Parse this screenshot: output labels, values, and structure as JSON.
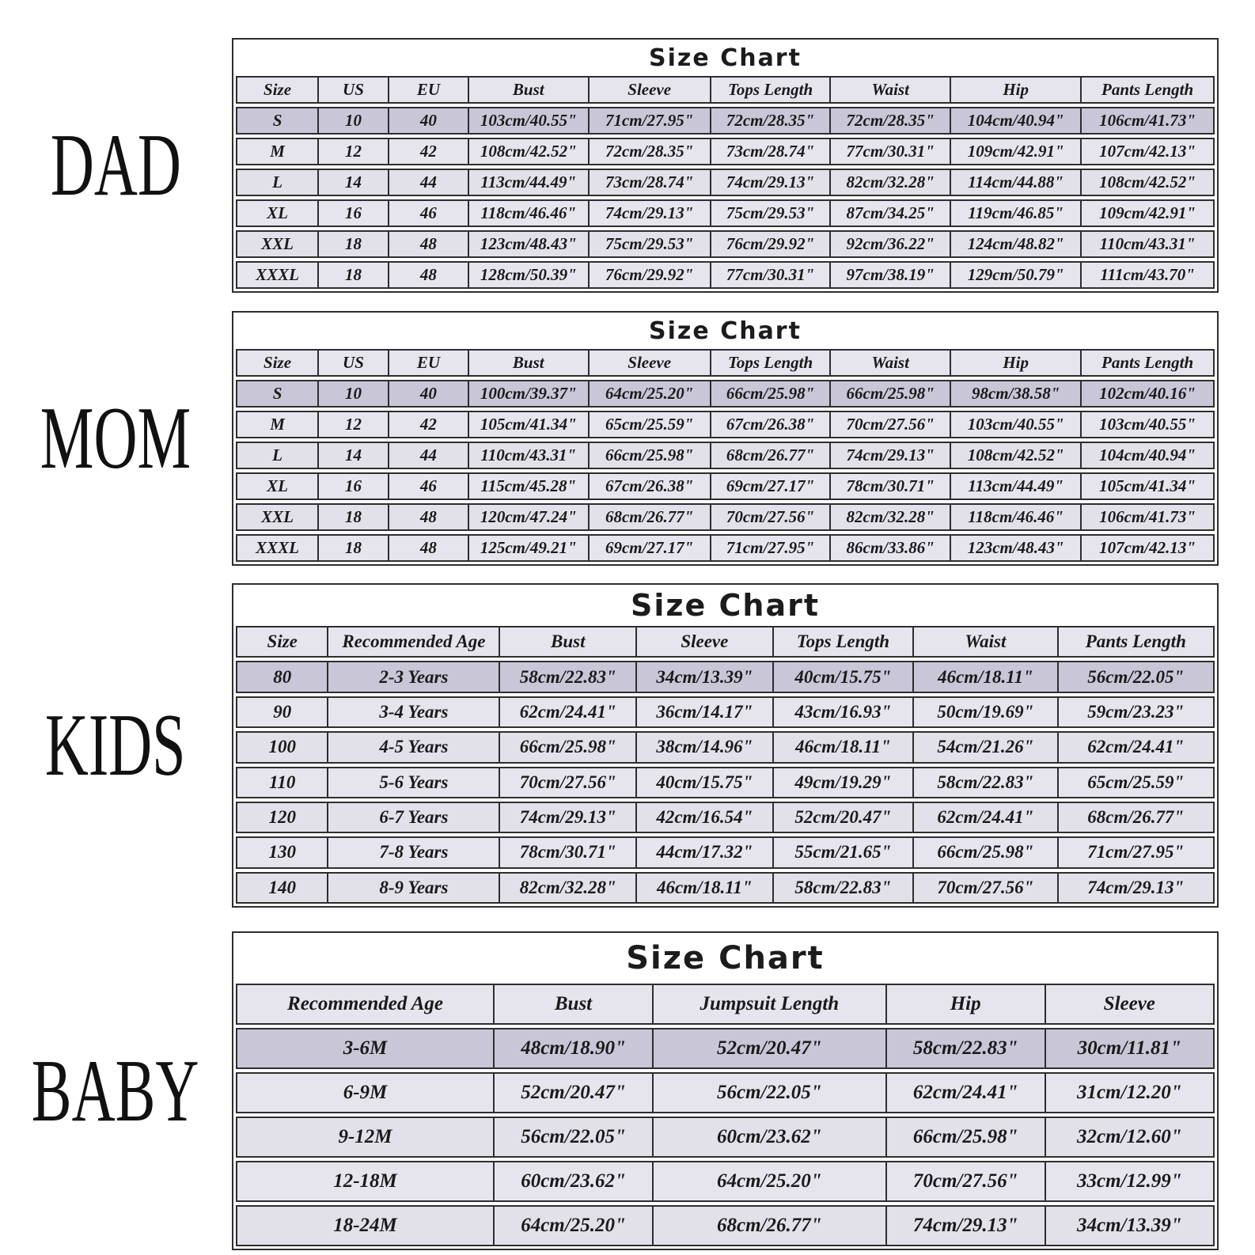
{
  "colors": {
    "page_bg": "#ffffff",
    "border": "#2e2e2e",
    "header_bg": "#c6c3d6",
    "first_row_bg": "#c9c6d8",
    "row_a": "#e6e5ee",
    "row_b": "#e2e1ea",
    "cell_text": "#1a1a1a",
    "title_color": "#1c1c1c",
    "label_color": "#111111"
  },
  "chart_data": [
    {
      "type": "table",
      "group": "DAD",
      "title": "Size Chart",
      "columns": [
        "Size",
        "US",
        "EU",
        "Bust",
        "Sleeve",
        "Tops Length",
        "Waist",
        "Hip",
        "Pants Length"
      ],
      "rows": [
        [
          "S",
          "10",
          "40",
          "103cm/40.55\"",
          "71cm/27.95\"",
          "72cm/28.35\"",
          "72cm/28.35\"",
          "104cm/40.94\"",
          "106cm/41.73\""
        ],
        [
          "M",
          "12",
          "42",
          "108cm/42.52\"",
          "72cm/28.35\"",
          "73cm/28.74\"",
          "77cm/30.31\"",
          "109cm/42.91\"",
          "107cm/42.13\""
        ],
        [
          "L",
          "14",
          "44",
          "113cm/44.49\"",
          "73cm/28.74\"",
          "74cm/29.13\"",
          "82cm/32.28\"",
          "114cm/44.88\"",
          "108cm/42.52\""
        ],
        [
          "XL",
          "16",
          "46",
          "118cm/46.46\"",
          "74cm/29.13\"",
          "75cm/29.53\"",
          "87cm/34.25\"",
          "119cm/46.85\"",
          "109cm/42.91\""
        ],
        [
          "XXL",
          "18",
          "48",
          "123cm/48.43\"",
          "75cm/29.53\"",
          "76cm/29.92\"",
          "92cm/36.22\"",
          "124cm/48.82\"",
          "110cm/43.31\""
        ],
        [
          "XXXL",
          "18",
          "48",
          "128cm/50.39\"",
          "76cm/29.92\"",
          "77cm/30.31\"",
          "97cm/38.19\"",
          "129cm/50.79\"",
          "111cm/43.70\""
        ]
      ]
    },
    {
      "type": "table",
      "group": "MOM",
      "title": "Size Chart",
      "columns": [
        "Size",
        "US",
        "EU",
        "Bust",
        "Sleeve",
        "Tops Length",
        "Waist",
        "Hip",
        "Pants Length"
      ],
      "rows": [
        [
          "S",
          "10",
          "40",
          "100cm/39.37\"",
          "64cm/25.20\"",
          "66cm/25.98\"",
          "66cm/25.98\"",
          "98cm/38.58\"",
          "102cm/40.16\""
        ],
        [
          "M",
          "12",
          "42",
          "105cm/41.34\"",
          "65cm/25.59\"",
          "67cm/26.38\"",
          "70cm/27.56\"",
          "103cm/40.55\"",
          "103cm/40.55\""
        ],
        [
          "L",
          "14",
          "44",
          "110cm/43.31\"",
          "66cm/25.98\"",
          "68cm/26.77\"",
          "74cm/29.13\"",
          "108cm/42.52\"",
          "104cm/40.94\""
        ],
        [
          "XL",
          "16",
          "46",
          "115cm/45.28\"",
          "67cm/26.38\"",
          "69cm/27.17\"",
          "78cm/30.71\"",
          "113cm/44.49\"",
          "105cm/41.34\""
        ],
        [
          "XXL",
          "18",
          "48",
          "120cm/47.24\"",
          "68cm/26.77\"",
          "70cm/27.56\"",
          "82cm/32.28\"",
          "118cm/46.46\"",
          "106cm/41.73\""
        ],
        [
          "XXXL",
          "18",
          "48",
          "125cm/49.21\"",
          "69cm/27.17\"",
          "71cm/27.95\"",
          "86cm/33.86\"",
          "123cm/48.43\"",
          "107cm/42.13\""
        ]
      ]
    },
    {
      "type": "table",
      "group": "KIDS",
      "title": "Size Chart",
      "columns": [
        "Size",
        "Recommended Age",
        "Bust",
        "Sleeve",
        "Tops Length",
        "Waist",
        "Pants Length"
      ],
      "rows": [
        [
          "80",
          "2-3 Years",
          "58cm/22.83\"",
          "34cm/13.39\"",
          "40cm/15.75\"",
          "46cm/18.11\"",
          "56cm/22.05\""
        ],
        [
          "90",
          "3-4 Years",
          "62cm/24.41\"",
          "36cm/14.17\"",
          "43cm/16.93\"",
          "50cm/19.69\"",
          "59cm/23.23\""
        ],
        [
          "100",
          "4-5 Years",
          "66cm/25.98\"",
          "38cm/14.96\"",
          "46cm/18.11\"",
          "54cm/21.26\"",
          "62cm/24.41\""
        ],
        [
          "110",
          "5-6 Years",
          "70cm/27.56\"",
          "40cm/15.75\"",
          "49cm/19.29\"",
          "58cm/22.83\"",
          "65cm/25.59\""
        ],
        [
          "120",
          "6-7 Years",
          "74cm/29.13\"",
          "42cm/16.54\"",
          "52cm/20.47\"",
          "62cm/24.41\"",
          "68cm/26.77\""
        ],
        [
          "130",
          "7-8 Years",
          "78cm/30.71\"",
          "44cm/17.32\"",
          "55cm/21.65\"",
          "66cm/25.98\"",
          "71cm/27.95\""
        ],
        [
          "140",
          "8-9 Years",
          "82cm/32.28\"",
          "46cm/18.11\"",
          "58cm/22.83\"",
          "70cm/27.56\"",
          "74cm/29.13\""
        ]
      ]
    },
    {
      "type": "table",
      "group": "BABY",
      "title": "Size Chart",
      "columns": [
        "Recommended Age",
        "Bust",
        "Jumpsuit Length",
        "Hip",
        "Sleeve"
      ],
      "rows": [
        [
          "3-6M",
          "48cm/18.90\"",
          "52cm/20.47\"",
          "58cm/22.83\"",
          "30cm/11.81\""
        ],
        [
          "6-9M",
          "52cm/20.47\"",
          "56cm/22.05\"",
          "62cm/24.41\"",
          "31cm/12.20\""
        ],
        [
          "9-12M",
          "56cm/22.05\"",
          "60cm/23.62\"",
          "66cm/25.98\"",
          "32cm/12.60\""
        ],
        [
          "12-18M",
          "60cm/23.62\"",
          "64cm/25.20\"",
          "70cm/27.56\"",
          "33cm/12.99\""
        ],
        [
          "18-24M",
          "64cm/25.20\"",
          "68cm/26.77\"",
          "74cm/29.13\"",
          "34cm/13.39\""
        ]
      ]
    }
  ]
}
